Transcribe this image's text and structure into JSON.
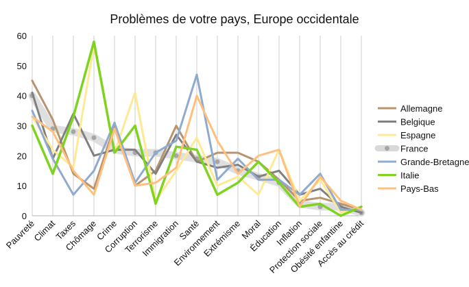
{
  "chart_data": {
    "type": "line",
    "title": "Problèmes de votre pays, Europe occidentale",
    "xlabel": "",
    "ylabel": "",
    "ylim": [
      0,
      60
    ],
    "yticks": [
      0,
      10,
      20,
      30,
      40,
      50,
      60
    ],
    "grid": {
      "vertical": true,
      "horizontal": false
    },
    "legend_position": "right",
    "categories": [
      "Pauvreté",
      "Climat",
      "Taxes",
      "Chômage",
      "Crime",
      "Corruption",
      "Terrorisme",
      "Immigration",
      "Santé",
      "Environnement",
      "Extrémisme",
      "Moral",
      "Éducation",
      "Inflation",
      "Protection sociale",
      "Obésité enfantine",
      "Accès au crédit"
    ],
    "series": [
      {
        "name": "Allemagne",
        "color": "#b8946e",
        "style": "line",
        "values": [
          45,
          32,
          14,
          9,
          30,
          10,
          15,
          30,
          18,
          21,
          21,
          18,
          12,
          5,
          6,
          4,
          2
        ]
      },
      {
        "name": "Belgique",
        "color": "#808080",
        "style": "line",
        "values": [
          41,
          19,
          34,
          20,
          22,
          22,
          14,
          27,
          18,
          16,
          17,
          13,
          15,
          7,
          9,
          3,
          1
        ]
      },
      {
        "name": "Espagne",
        "color": "#ffe993",
        "style": "line",
        "values": [
          33,
          22,
          16,
          57,
          21,
          41,
          5,
          15,
          26,
          10,
          13,
          7,
          22,
          5,
          12,
          1,
          3
        ]
      },
      {
        "name": "France",
        "color": "#d9d9d9",
        "marker": "#a6a6a6",
        "style": "band",
        "values": [
          40,
          29,
          28,
          26,
          22,
          21,
          21,
          20,
          19,
          18,
          15,
          13,
          11,
          4,
          3,
          3,
          1
        ]
      },
      {
        "name": "Grande-Bretagne",
        "color": "#8eaacf",
        "style": "line",
        "values": [
          35,
          19,
          7,
          15,
          31,
          11,
          21,
          25,
          47,
          12,
          19,
          12,
          12,
          7,
          14,
          2,
          2
        ]
      },
      {
        "name": "Italie",
        "color": "#7ed321",
        "style": "line",
        "values": [
          30,
          14,
          33,
          58,
          21,
          30,
          4,
          23,
          22,
          7,
          11,
          18,
          11,
          3,
          4,
          0,
          3
        ]
      },
      {
        "name": "Pays-Bas",
        "color": "#ffbf7f",
        "style": "line",
        "values": [
          33,
          28,
          15,
          7,
          29,
          10,
          11,
          16,
          40,
          25,
          14,
          20,
          22,
          3,
          13,
          5,
          2
        ]
      }
    ]
  }
}
